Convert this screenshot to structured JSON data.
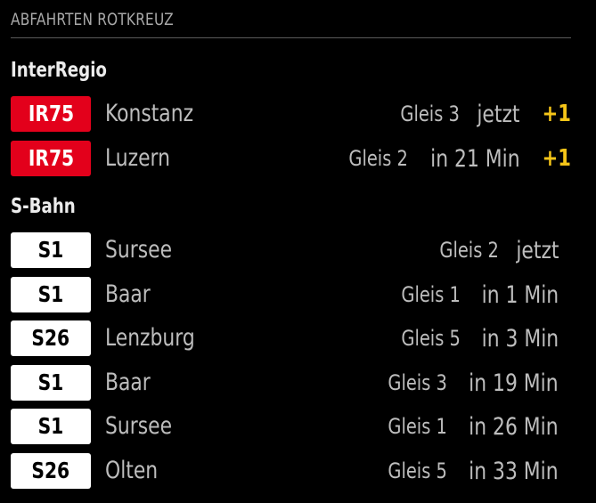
{
  "header": {
    "title": "ABFAHRTEN ROTKREUZ"
  },
  "sections": [
    {
      "title": "InterRegio",
      "departures": [
        {
          "line": "IR75",
          "destination": "Konstanz",
          "platform": "Gleis 3",
          "time": "jetzt",
          "delay": "+1"
        },
        {
          "line": "IR75",
          "destination": "Luzern",
          "platform": "Gleis 2",
          "time": "in 21 Min",
          "delay": "+1"
        }
      ]
    },
    {
      "title": "S-Bahn",
      "departures": [
        {
          "line": "S1",
          "destination": "Sursee",
          "platform": "Gleis 2",
          "time": "jetzt"
        },
        {
          "line": "S1",
          "destination": "Baar",
          "platform": "Gleis 1",
          "time": "in 1 Min"
        },
        {
          "line": "S26",
          "destination": "Lenzburg",
          "platform": "Gleis 5",
          "time": "in 3 Min"
        },
        {
          "line": "S1",
          "destination": "Baar",
          "platform": "Gleis 3",
          "time": "in 19 Min"
        },
        {
          "line": "S1",
          "destination": "Sursee",
          "platform": "Gleis 1",
          "time": "in 26 Min"
        },
        {
          "line": "S26",
          "destination": "Olten",
          "platform": "Gleis 5",
          "time": "in 33 Min"
        }
      ]
    }
  ],
  "colors": {
    "background": "#000000",
    "interregio_badge": "#e3001b",
    "sbahn_badge": "#ffffff",
    "delay": "#f5c518",
    "text": "#bdbdbd"
  }
}
